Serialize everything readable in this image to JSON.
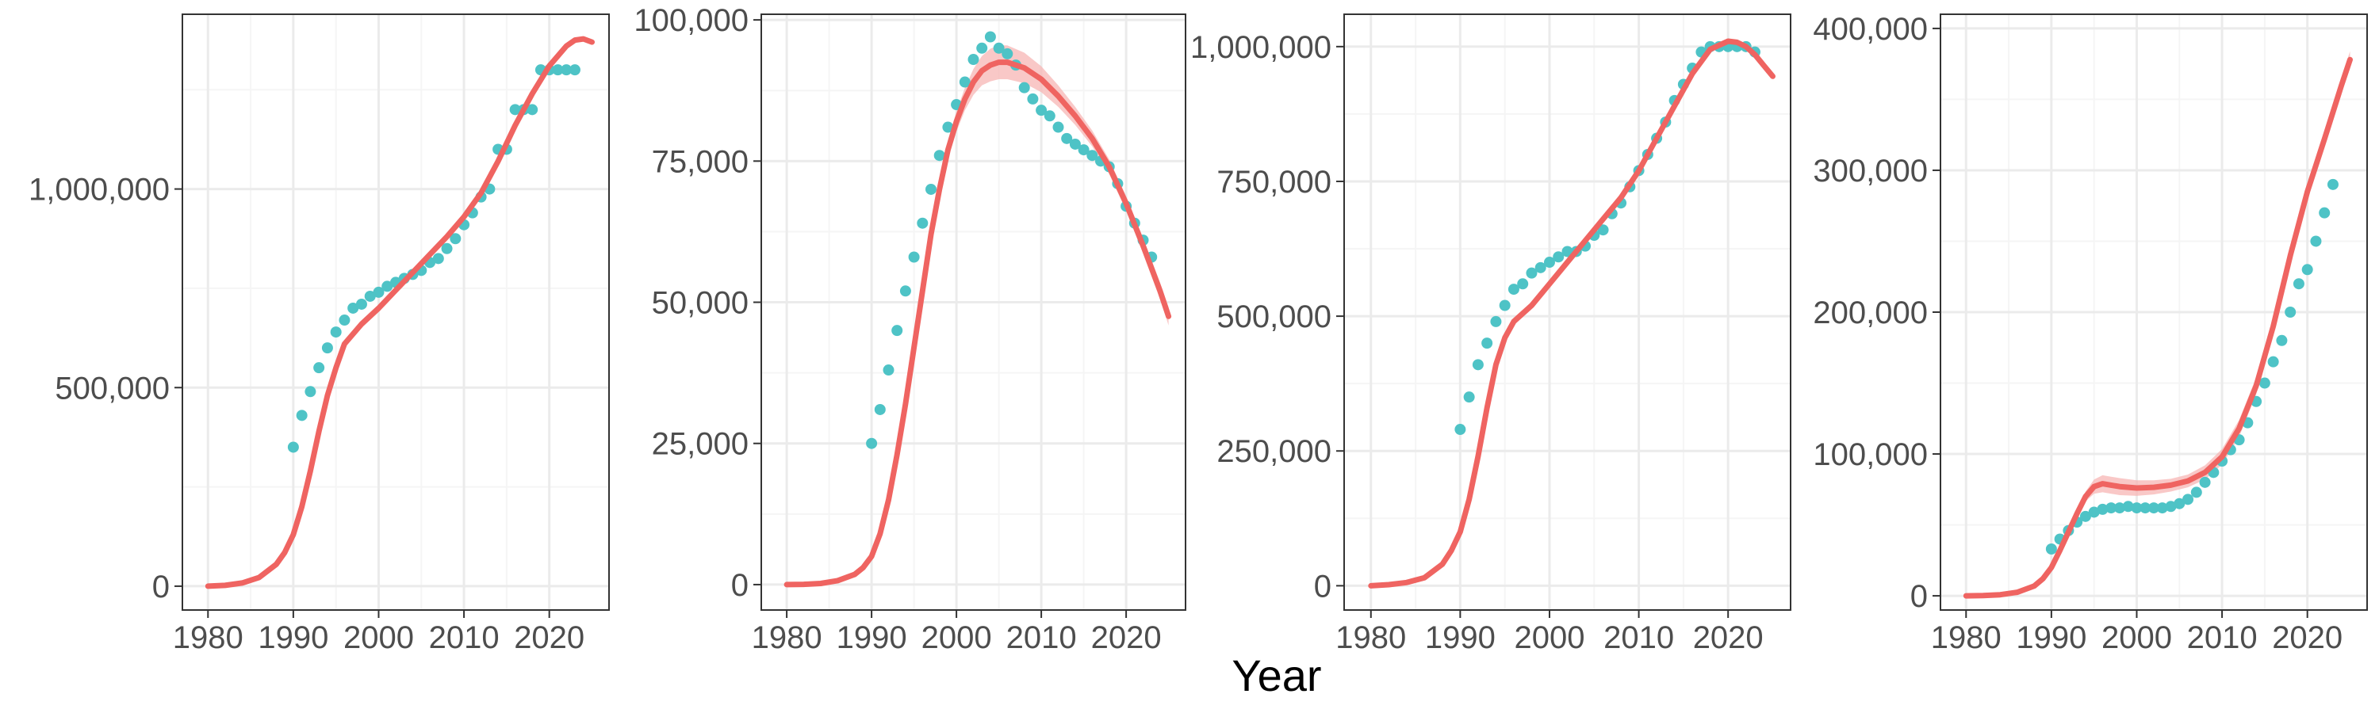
{
  "figure": {
    "xlabel": "Year"
  },
  "colors": {
    "points": "#4EC3C6",
    "line": "#EF6461",
    "band": "#F7B6B4",
    "grid_major": "#EBEBEB",
    "grid_minor": "#F5F5F5",
    "panel_border": "#333333"
  },
  "chart_data": [
    {
      "type": "scatter",
      "title": "",
      "xlabel": "",
      "ylabel": "",
      "xlim": [
        1977,
        2027
      ],
      "ylim": [
        -60000,
        1440000
      ],
      "x_ticks": [
        1980,
        1990,
        2000,
        2010,
        2020
      ],
      "x_tick_labels": [
        "1980",
        "1990",
        "2000",
        "2010",
        "2020"
      ],
      "y_ticks": [
        0,
        500000,
        1000000
      ],
      "y_tick_labels": [
        "0",
        "500,000",
        "1,000,000"
      ],
      "grid": true,
      "legend": "none",
      "points": {
        "x": [
          1990,
          1991,
          1992,
          1993,
          1994,
          1995,
          1996,
          1997,
          1998,
          1999,
          2000,
          2001,
          2002,
          2003,
          2004,
          2005,
          2006,
          2007,
          2008,
          2009,
          2010,
          2011,
          2012,
          2013,
          2014,
          2015,
          2016,
          2017,
          2018,
          2019,
          2020,
          2021,
          2022,
          2023
        ],
        "y": [
          350000,
          430000,
          490000,
          550000,
          600000,
          640000,
          670000,
          700000,
          710000,
          730000,
          740000,
          755000,
          765000,
          775000,
          785000,
          795000,
          815000,
          825000,
          850000,
          875000,
          910000,
          940000,
          980000,
          1000000,
          1100000,
          1100000,
          1200000,
          1200000,
          1200000,
          1300000,
          1300000,
          1300000,
          1300000,
          1300000
        ]
      },
      "fit_line": {
        "x": [
          1980,
          1982,
          1984,
          1986,
          1988,
          1989,
          1990,
          1991,
          1992,
          1993,
          1994,
          1995,
          1996,
          1998,
          2000,
          2002,
          2004,
          2006,
          2008,
          2010,
          2012,
          2014,
          2016,
          2018,
          2020,
          2022,
          2023,
          2024,
          2025
        ],
        "y": [
          0,
          2000,
          8000,
          22000,
          55000,
          85000,
          130000,
          200000,
          290000,
          390000,
          480000,
          550000,
          610000,
          660000,
          700000,
          745000,
          790000,
          835000,
          880000,
          930000,
          990000,
          1070000,
          1160000,
          1240000,
          1310000,
          1360000,
          1375000,
          1378000,
          1370000
        ],
        "band_halfwidth": [
          0,
          0,
          0,
          0,
          0,
          0,
          0,
          0,
          0,
          0,
          0,
          0,
          0,
          0,
          0,
          0,
          0,
          0,
          0,
          0,
          0,
          0,
          0,
          0,
          0,
          0,
          0,
          0,
          0
        ]
      }
    },
    {
      "type": "scatter",
      "title": "",
      "xlabel": "",
      "ylabel": "",
      "xlim": [
        1977,
        2027
      ],
      "ylim": [
        -4500,
        101000
      ],
      "x_ticks": [
        1980,
        1990,
        2000,
        2010,
        2020
      ],
      "x_tick_labels": [
        "1980",
        "1990",
        "2000",
        "2010",
        "2020"
      ],
      "y_ticks": [
        0,
        25000,
        50000,
        75000,
        100000
      ],
      "y_tick_labels": [
        "0",
        "25,000",
        "50,000",
        "75,000",
        "100,000"
      ],
      "grid": true,
      "legend": "none",
      "points": {
        "x": [
          1990,
          1991,
          1992,
          1993,
          1994,
          1995,
          1996,
          1997,
          1998,
          1999,
          2000,
          2001,
          2002,
          2003,
          2004,
          2005,
          2006,
          2007,
          2008,
          2009,
          2010,
          2011,
          2012,
          2013,
          2014,
          2015,
          2016,
          2017,
          2018,
          2019,
          2020,
          2021,
          2022,
          2023
        ],
        "y": [
          25000,
          31000,
          38000,
          45000,
          52000,
          58000,
          64000,
          70000,
          76000,
          81000,
          85000,
          89000,
          93000,
          95000,
          97000,
          95000,
          94000,
          92000,
          88000,
          86000,
          84000,
          83000,
          81000,
          79000,
          78000,
          77000,
          76000,
          75000,
          74000,
          71000,
          67000,
          64000,
          61000,
          58000
        ]
      },
      "fit_line": {
        "x": [
          1980,
          1982,
          1984,
          1986,
          1988,
          1989,
          1990,
          1991,
          1992,
          1993,
          1994,
          1995,
          1996,
          1997,
          1998,
          1999,
          2000,
          2001,
          2002,
          2003,
          2004,
          2005,
          2006,
          2008,
          2010,
          2012,
          2014,
          2016,
          2018,
          2020,
          2022,
          2024,
          2025
        ],
        "y": [
          0,
          50,
          200,
          700,
          1800,
          3000,
          5000,
          9000,
          15000,
          23000,
          32000,
          42000,
          52000,
          62000,
          70000,
          77000,
          82000,
          86000,
          89000,
          91000,
          92000,
          92500,
          92500,
          91500,
          89500,
          86500,
          83000,
          79000,
          74000,
          67500,
          60000,
          52000,
          47500
        ],
        "band_halfwidth": [
          0,
          0,
          0,
          0,
          0,
          0,
          0,
          0,
          0,
          0,
          500,
          800,
          1000,
          1200,
          1400,
          1600,
          1800,
          2000,
          2300,
          2600,
          2900,
          3000,
          3000,
          2700,
          2300,
          1900,
          1600,
          1400,
          1300,
          1300,
          1400,
          1500,
          1600
        ]
      }
    },
    {
      "type": "scatter",
      "title": "",
      "xlabel": "",
      "ylabel": "",
      "xlim": [
        1977,
        2027
      ],
      "ylim": [
        -45000,
        1060000
      ],
      "x_ticks": [
        1980,
        1990,
        2000,
        2010,
        2020
      ],
      "x_tick_labels": [
        "1980",
        "1990",
        "2000",
        "2010",
        "2020"
      ],
      "y_ticks": [
        0,
        250000,
        500000,
        750000,
        1000000
      ],
      "y_tick_labels": [
        "0",
        "250,000",
        "500,000",
        "750,000",
        "1,000,000"
      ],
      "grid": true,
      "legend": "none",
      "points": {
        "x": [
          1990,
          1991,
          1992,
          1993,
          1994,
          1995,
          1996,
          1997,
          1998,
          1999,
          2000,
          2001,
          2002,
          2003,
          2004,
          2005,
          2006,
          2007,
          2008,
          2009,
          2010,
          2011,
          2012,
          2013,
          2014,
          2015,
          2016,
          2017,
          2018,
          2019,
          2020,
          2021,
          2022,
          2023
        ],
        "y": [
          290000,
          350000,
          410000,
          450000,
          490000,
          520000,
          550000,
          560000,
          580000,
          590000,
          600000,
          610000,
          620000,
          620000,
          630000,
          650000,
          660000,
          690000,
          710000,
          740000,
          770000,
          800000,
          830000,
          860000,
          900000,
          930000,
          960000,
          990000,
          1000000,
          1000000,
          1000000,
          1000000,
          1000000,
          990000
        ]
      },
      "fit_line": {
        "x": [
          1980,
          1982,
          1984,
          1986,
          1988,
          1989,
          1990,
          1991,
          1992,
          1993,
          1994,
          1995,
          1996,
          1998,
          2000,
          2002,
          2004,
          2006,
          2008,
          2010,
          2012,
          2014,
          2016,
          2018,
          2020,
          2021,
          2022,
          2023,
          2024,
          2025
        ],
        "y": [
          0,
          2000,
          6000,
          15000,
          40000,
          65000,
          100000,
          160000,
          240000,
          330000,
          410000,
          460000,
          490000,
          520000,
          560000,
          600000,
          640000,
          680000,
          720000,
          770000,
          830000,
          890000,
          950000,
          995000,
          1010000,
          1008000,
          1000000,
          985000,
          965000,
          945000
        ],
        "band_halfwidth": [
          0,
          0,
          0,
          0,
          0,
          0,
          0,
          0,
          0,
          0,
          0,
          0,
          0,
          0,
          0,
          0,
          0,
          0,
          0,
          0,
          0,
          0,
          0,
          0,
          0,
          0,
          0,
          0,
          0,
          0
        ]
      }
    },
    {
      "type": "scatter",
      "title": "",
      "xlabel": "",
      "ylabel": "",
      "xlim": [
        1977,
        2027
      ],
      "ylim": [
        -10000,
        410000
      ],
      "x_ticks": [
        1980,
        1990,
        2000,
        2010,
        2020
      ],
      "x_tick_labels": [
        "1980",
        "1990",
        "2000",
        "2010",
        "2020"
      ],
      "y_ticks": [
        0,
        100000,
        200000,
        300000,
        400000
      ],
      "y_tick_labels": [
        "0",
        "100,000",
        "200,000",
        "300,000",
        "400,000"
      ],
      "grid": true,
      "legend": "none",
      "points": {
        "x": [
          1990,
          1991,
          1992,
          1993,
          1994,
          1995,
          1996,
          1997,
          1998,
          1999,
          2000,
          2001,
          2002,
          2003,
          2004,
          2005,
          2006,
          2007,
          2008,
          2009,
          2010,
          2011,
          2012,
          2013,
          2014,
          2015,
          2016,
          2017,
          2018,
          2019,
          2020,
          2021,
          2022,
          2023
        ],
        "y": [
          33000,
          40000,
          46000,
          52000,
          56000,
          59000,
          61000,
          62000,
          62000,
          63000,
          62000,
          62000,
          62000,
          62000,
          63000,
          65000,
          68000,
          73000,
          80000,
          87000,
          95000,
          103000,
          110000,
          122000,
          137000,
          150000,
          165000,
          180000,
          200000,
          220000,
          230000,
          250000,
          270000,
          290000
        ]
      },
      "fit_line": {
        "x": [
          1980,
          1982,
          1984,
          1986,
          1988,
          1989,
          1990,
          1991,
          1992,
          1993,
          1994,
          1995,
          1996,
          1997,
          1998,
          2000,
          2002,
          2004,
          2006,
          2008,
          2010,
          2012,
          2014,
          2016,
          2018,
          2020,
          2022,
          2024,
          2025
        ],
        "y": [
          0,
          200,
          800,
          2500,
          7000,
          12000,
          20000,
          32000,
          45000,
          58000,
          70000,
          77000,
          79000,
          78000,
          77000,
          76000,
          76500,
          78000,
          81000,
          87000,
          98000,
          118000,
          148000,
          190000,
          240000,
          285000,
          322000,
          360000,
          378000
        ],
        "band_halfwidth": [
          0,
          0,
          0,
          0,
          0,
          0,
          0,
          0,
          0,
          2000,
          3500,
          5000,
          6000,
          6000,
          6000,
          5500,
          5000,
          4500,
          4500,
          5000,
          5500,
          6000,
          6000,
          6000,
          6000,
          6000,
          6000,
          6000,
          6000
        ]
      }
    }
  ]
}
